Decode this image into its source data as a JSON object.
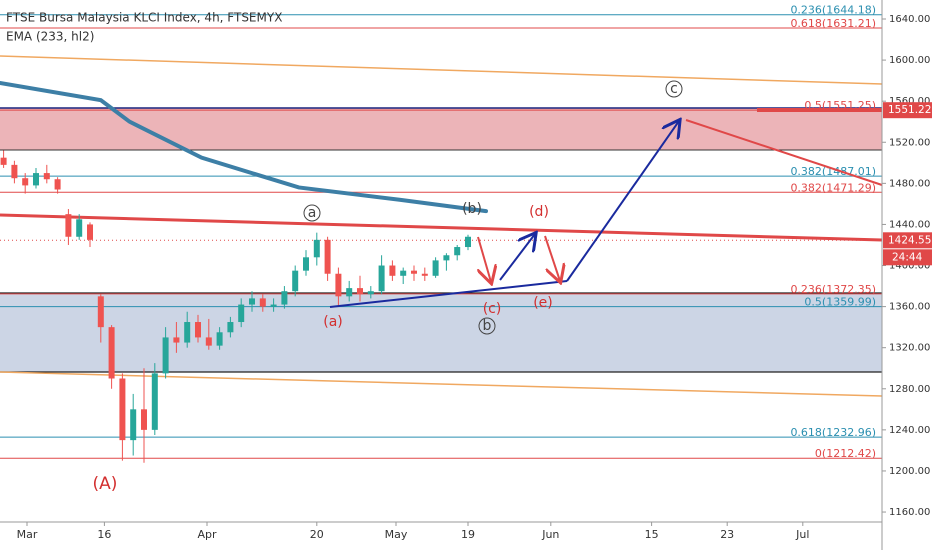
{
  "chart_data": {
    "type": "candlestick",
    "title": "FTSE Bursa Malaysia KLCI Index, 4h, FTSEMYX",
    "subtitle": "EMA (233, hl2)",
    "xlim": [
      0,
      245
    ],
    "xticks": [
      {
        "value": 7.5,
        "label": "Mar"
      },
      {
        "value": 29,
        "label": "16"
      },
      {
        "value": 57.5,
        "label": "Apr"
      },
      {
        "value": 88,
        "label": "20"
      },
      {
        "value": 110,
        "label": "May"
      },
      {
        "value": 130,
        "label": "19"
      },
      {
        "value": 153,
        "label": "Jun"
      },
      {
        "value": 181,
        "label": "15"
      },
      {
        "value": 202,
        "label": "23"
      },
      {
        "value": 223,
        "label": "Jul"
      }
    ],
    "ylim": [
      1150.3,
      1658.5
    ],
    "yticks": [
      {
        "value": 1640,
        "label": "1640.00"
      },
      {
        "value": 1600,
        "label": "1600.00"
      },
      {
        "value": 1560,
        "label": "1560.00"
      },
      {
        "value": 1520,
        "label": "1520.00"
      },
      {
        "value": 1480,
        "label": "1480.00"
      },
      {
        "value": 1440,
        "label": "1440.00"
      },
      {
        "value": 1400,
        "label": "1400.00"
      },
      {
        "value": 1360,
        "label": "1360.00"
      },
      {
        "value": 1320,
        "label": "1320.00"
      },
      {
        "value": 1280,
        "label": "1280.00"
      },
      {
        "value": 1240,
        "label": "1240.00"
      },
      {
        "value": 1200,
        "label": "1200.00"
      },
      {
        "value": 1160,
        "label": "1160.00"
      }
    ],
    "up_color": "#26a69a",
    "down_color": "#ef5350",
    "x": [
      1,
      4,
      7,
      10,
      13,
      16,
      19,
      22,
      25,
      28,
      31,
      34,
      37,
      40,
      43,
      46,
      49,
      52,
      55,
      58,
      61,
      64,
      67,
      70,
      73,
      76,
      79,
      82,
      85,
      88,
      91,
      94,
      97,
      100,
      103,
      106,
      109,
      112,
      115,
      118,
      121,
      124,
      127,
      130
    ],
    "open": [
      1505,
      1498,
      1485,
      1478,
      1490,
      1484,
      1450,
      1428,
      1440,
      1370,
      1340,
      1290,
      1230,
      1260,
      1240,
      1295,
      1330,
      1325,
      1345,
      1330,
      1322,
      1335,
      1345,
      1362,
      1368,
      1360,
      1362,
      1375,
      1395,
      1408,
      1425,
      1392,
      1370,
      1378,
      1372,
      1375,
      1400,
      1390,
      1395,
      1392,
      1390,
      1405,
      1410,
      1418
    ],
    "high": [
      1512,
      1502,
      1490,
      1495,
      1498,
      1486,
      1455,
      1450,
      1442,
      1372,
      1342,
      1295,
      1275,
      1300,
      1305,
      1340,
      1345,
      1355,
      1352,
      1348,
      1340,
      1350,
      1368,
      1375,
      1372,
      1368,
      1380,
      1400,
      1415,
      1432,
      1428,
      1398,
      1385,
      1390,
      1380,
      1410,
      1405,
      1398,
      1400,
      1398,
      1408,
      1412,
      1420,
      1430
    ],
    "low": [
      1495,
      1480,
      1470,
      1475,
      1480,
      1470,
      1420,
      1425,
      1418,
      1325,
      1280,
      1210,
      1215,
      1208,
      1235,
      1290,
      1315,
      1320,
      1325,
      1318,
      1318,
      1330,
      1340,
      1355,
      1355,
      1355,
      1358,
      1370,
      1390,
      1400,
      1385,
      1360,
      1365,
      1365,
      1368,
      1372,
      1385,
      1382,
      1385,
      1385,
      1388,
      1395,
      1405,
      1415
    ],
    "close": [
      1498,
      1485,
      1478,
      1490,
      1484,
      1474,
      1428,
      1445,
      1425,
      1340,
      1290,
      1230,
      1260,
      1240,
      1295,
      1330,
      1325,
      1345,
      1330,
      1322,
      1335,
      1345,
      1362,
      1368,
      1360,
      1362,
      1375,
      1395,
      1408,
      1425,
      1392,
      1370,
      1378,
      1372,
      1375,
      1400,
      1390,
      1395,
      1392,
      1390,
      1405,
      1410,
      1418,
      1428
    ],
    "ema": {
      "name": "EMA (233, hl2)",
      "color": "#3d7fa6",
      "x": [
        0,
        28,
        36,
        56,
        83,
        111,
        135
      ],
      "values": [
        1577.7,
        1561,
        1540,
        1505,
        1476,
        1464,
        1453
      ]
    },
    "fib_levels": [
      {
        "label": "0.236(1644.18)",
        "value": 1644.18,
        "color": "#2b8fb0"
      },
      {
        "label": "0.618(1631.21)",
        "value": 1631.21,
        "color": "#e04848"
      },
      {
        "label": "0.5(1551.25)",
        "value": 1551.25,
        "color": "#e04848"
      },
      {
        "label": "0.382(1487.01)",
        "value": 1487.01,
        "color": "#2b8fb0"
      },
      {
        "label": "0.382(1471.29)",
        "value": 1471.29,
        "color": "#e04848"
      },
      {
        "label": "0.236(1372.35)",
        "value": 1372.35,
        "color": "#e04848"
      },
      {
        "label": "0.5(1359.99)",
        "value": 1359.99,
        "color": "#2b8fb0"
      },
      {
        "label": "0.618(1232.96)",
        "value": 1232.96,
        "color": "#2b8fb0"
      },
      {
        "label": "0(1212.42)",
        "value": 1212.42,
        "color": "#e04848"
      }
    ],
    "last_price": {
      "value": 1424.55,
      "label": "1424.55"
    },
    "alert_price": {
      "value": 1551.22,
      "label": "1551.22"
    },
    "countdown": "24:44",
    "annotations": [
      "(A)",
      "a",
      "(b)",
      "(d)",
      "(c)",
      "(e)",
      "(a)",
      "b",
      "c"
    ]
  }
}
